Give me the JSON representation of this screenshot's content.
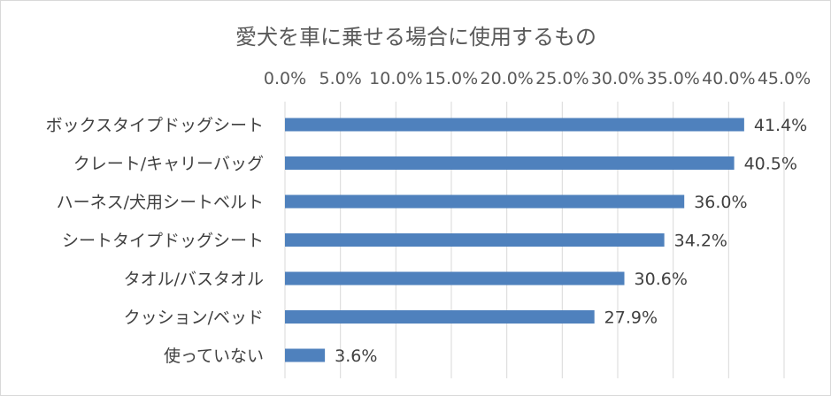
{
  "chart_data": {
    "type": "bar",
    "orientation": "horizontal",
    "title": "愛犬を車に乗せる場合に使用するもの",
    "xlabel": "",
    "ylabel": "",
    "xlim": [
      0,
      45
    ],
    "x_ticks": [
      "0.0%",
      "5.0%",
      "10.0%",
      "15.0%",
      "20.0%",
      "25.0%",
      "30.0%",
      "35.0%",
      "40.0%",
      "45.0%"
    ],
    "x_axis_position": "top",
    "grid": true,
    "legend": "none",
    "bar_color": "#4f81bd",
    "categories": [
      "ボックスタイプドッグシート",
      "クレート/キャリーバッグ",
      "ハーネス/犬用シートベルト",
      "シートタイプドッグシート",
      "タオル/バスタオル",
      "クッション/ベッド",
      "使っていない"
    ],
    "values": [
      41.4,
      40.5,
      36.0,
      34.2,
      30.6,
      27.9,
      3.6
    ],
    "value_labels": [
      "41.4%",
      "40.5%",
      "36.0%",
      "34.2%",
      "30.6%",
      "27.9%",
      "3.6%"
    ]
  }
}
